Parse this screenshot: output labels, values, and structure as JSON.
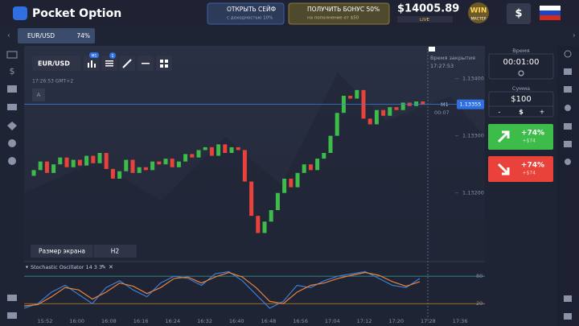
{
  "header": {
    "logo": "Pocket Option",
    "safe_title": "ОТКРЫТЬ СЕЙФ",
    "safe_subtitle": "с доходностью 10%",
    "bonus_title": "ПОЛУЧИТЬ БОНУС 50%",
    "bonus_subtitle": "на пополнение от $50",
    "balance": "$14005.89",
    "account": "LIVE",
    "badge": "WIN",
    "badge_sub": "МАСТЕР",
    "deposit": "$"
  },
  "tab": {
    "asset": "EUR/USD",
    "payout": "74%"
  },
  "toolbar": {
    "pair": "EUR/USD",
    "timeframe_badge": "M1",
    "indicator_badge": "1"
  },
  "chart": {
    "time": "17:26:53 GMT+2",
    "marker": "A",
    "expiry_label": "Время закрытия",
    "expiry_time": "17:27:53",
    "ylim": [
      1.1308,
      1.1346
    ],
    "yticks": [
      {
        "value": 1.134,
        "label": "1.13400"
      },
      {
        "value": 1.133,
        "label": "1.13300"
      },
      {
        "value": 1.132,
        "label": "1.13200"
      }
    ],
    "current_price": {
      "value": 1.13355,
      "label": "1.13355"
    },
    "timeframe": "M1",
    "countdown": "00:07",
    "screen_label": "Размер экрана",
    "screen_value": "H2",
    "open": [
      1.1323,
      1.1324,
      1.13255,
      1.13235,
      1.1325,
      1.13262,
      1.13245,
      1.13258,
      1.13248,
      1.13265,
      1.13252,
      1.1327,
      1.13242,
      1.13225,
      1.13238,
      1.13258,
      1.13235,
      1.13245,
      1.1324,
      1.13255,
      1.1325,
      1.1326,
      1.13245,
      1.13255,
      1.13268,
      1.13262,
      1.13275,
      1.1328,
      1.13265,
      1.13285,
      1.1327,
      1.1328,
      1.13275,
      1.1322,
      1.1316,
      1.1313,
      1.1315,
      1.1317,
      1.132,
      1.13225,
      1.1321,
      1.13235,
      1.1325,
      1.1324,
      1.1326,
      1.1327,
      1.133,
      1.1334,
      1.1337,
      1.13365,
      1.1338,
      1.1333,
      1.1332,
      1.13345,
      1.13335,
      1.1335,
      1.13345,
      1.13358,
      1.13352,
      1.1336
    ],
    "close": [
      1.1324,
      1.13255,
      1.13235,
      1.1325,
      1.13262,
      1.13245,
      1.13258,
      1.13248,
      1.13265,
      1.13252,
      1.1327,
      1.13242,
      1.13225,
      1.13238,
      1.13258,
      1.13235,
      1.13245,
      1.1324,
      1.13255,
      1.1325,
      1.1326,
      1.13245,
      1.13255,
      1.13268,
      1.13262,
      1.13275,
      1.1328,
      1.13265,
      1.13285,
      1.1327,
      1.1328,
      1.13275,
      1.1322,
      1.1316,
      1.1313,
      1.1315,
      1.1317,
      1.132,
      1.13225,
      1.1321,
      1.13235,
      1.1325,
      1.1324,
      1.1326,
      1.1327,
      1.133,
      1.1334,
      1.1337,
      1.13365,
      1.1338,
      1.1333,
      1.1332,
      1.13345,
      1.13335,
      1.1335,
      1.13345,
      1.13358,
      1.13352,
      1.1336,
      1.13355
    ],
    "up_color": "#3dbc4a",
    "down_color": "#e8423a",
    "times": [
      "15:52",
      "16:00",
      "16:08",
      "16:16",
      "16:24",
      "16:32",
      "16:40",
      "16:48",
      "16:56",
      "17:04",
      "17:12",
      "17:20",
      "17:28",
      "17:36"
    ]
  },
  "oscillator": {
    "title": "Stochastic Oscillator 14 3 3",
    "ylim": [
      -20,
      103
    ],
    "levels": [
      80,
      20
    ],
    "series": [
      {
        "color": "#3b7dd8",
        "values": [
          10,
          20,
          45,
          60,
          40,
          20,
          55,
          70,
          50,
          35,
          65,
          80,
          75,
          60,
          85,
          90,
          70,
          40,
          10,
          25,
          60,
          55,
          70,
          80,
          85,
          90,
          75,
          60,
          55,
          75
        ]
      },
      {
        "color": "#e8823a",
        "values": [
          15,
          18,
          35,
          55,
          50,
          30,
          45,
          65,
          58,
          42,
          55,
          75,
          78,
          65,
          78,
          88,
          78,
          55,
          25,
          20,
          45,
          60,
          65,
          75,
          82,
          88,
          82,
          68,
          58,
          68
        ]
      }
    ]
  },
  "panel": {
    "time_label": "Время",
    "time_value": "00:01:00",
    "amount_label": "Сумма",
    "amount_value": "$100",
    "minus": "-",
    "currency": "$",
    "plus": "+",
    "up_percent": "+74%",
    "up_profit": "+$74",
    "down_percent": "+74%",
    "down_profit": "+$74"
  }
}
